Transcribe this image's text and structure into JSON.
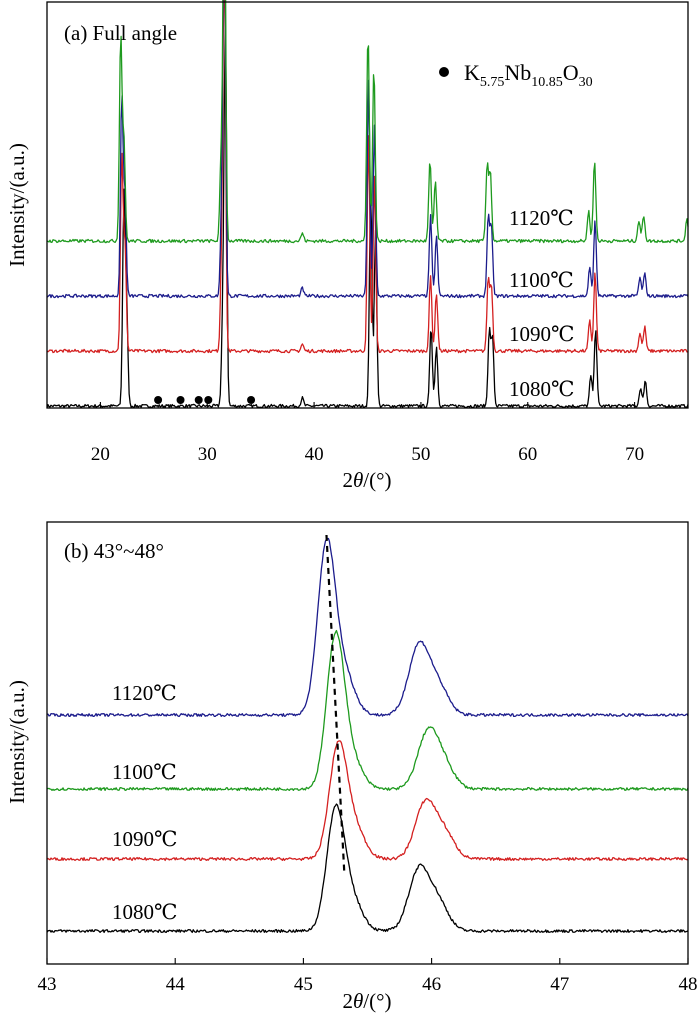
{
  "chart_data": [
    {
      "type": "line",
      "title": "(a) Full angle",
      "xlabel_prefix": "2",
      "xlabel_symbol": "θ",
      "xlabel_suffix": "/(°)",
      "ylabel": "Intensity/(a.u.)",
      "xlim": [
        15,
        75
      ],
      "xticks": [
        20,
        30,
        40,
        50,
        60,
        70
      ],
      "legend": {
        "marker": "filled-circle",
        "formula": [
          "K",
          "5.75",
          "Nb",
          "10.85",
          "O",
          "30"
        ],
        "placement": "top-right"
      },
      "impurity_markers_x": [
        25.4,
        27.5,
        29.2,
        30.1,
        34.1
      ],
      "series": [
        {
          "name": "1080℃",
          "color": "#000000",
          "offset": 0,
          "peaks": [
            [
              22.2,
              205
            ],
            [
              22.45,
              95
            ],
            [
              31.7,
              380
            ],
            [
              31.45,
              80
            ],
            [
              45.3,
              215
            ],
            [
              45.75,
              175
            ],
            [
              50.95,
              80
            ],
            [
              51.45,
              60
            ],
            [
              56.4,
              75
            ],
            [
              56.7,
              68
            ],
            [
              66.35,
              78
            ],
            [
              65.9,
              30
            ],
            [
              70.55,
              18
            ],
            [
              71.0,
              26
            ],
            [
              38.9,
              8
            ]
          ]
        },
        {
          "name": "1090℃",
          "color": "#d42020",
          "offset": 55,
          "peaks": [
            [
              22.0,
              195
            ],
            [
              22.3,
              105
            ],
            [
              31.6,
              395
            ],
            [
              31.35,
              85
            ],
            [
              45.1,
              215
            ],
            [
              45.65,
              175
            ],
            [
              50.9,
              75
            ],
            [
              51.45,
              58
            ],
            [
              56.3,
              72
            ],
            [
              56.6,
              65
            ],
            [
              66.3,
              78
            ],
            [
              65.8,
              30
            ],
            [
              70.5,
              18
            ],
            [
              70.95,
              24
            ],
            [
              38.9,
              7
            ]
          ]
        },
        {
          "name": "1100℃",
          "color": "#1c1c8c",
          "offset": 110,
          "peaks": [
            [
              22.0,
              200
            ],
            [
              22.3,
              100
            ],
            [
              31.6,
              385
            ],
            [
              31.35,
              80
            ],
            [
              45.1,
              215
            ],
            [
              45.65,
              170
            ],
            [
              50.9,
              80
            ],
            [
              51.45,
              60
            ],
            [
              56.3,
              78
            ],
            [
              56.6,
              70
            ],
            [
              66.3,
              75
            ],
            [
              65.8,
              28
            ],
            [
              70.5,
              18
            ],
            [
              70.95,
              22
            ],
            [
              38.9,
              8
            ]
          ]
        },
        {
          "name": "1120℃",
          "color": "#1e9a1e",
          "offset": 165,
          "peaks": [
            [
              21.9,
              205
            ],
            [
              22.2,
              100
            ],
            [
              31.6,
              398
            ],
            [
              31.3,
              82
            ],
            [
              45.05,
              210
            ],
            [
              45.6,
              175
            ],
            [
              50.85,
              80
            ],
            [
              51.35,
              60
            ],
            [
              56.2,
              75
            ],
            [
              56.5,
              68
            ],
            [
              66.25,
              80
            ],
            [
              65.7,
              30
            ],
            [
              70.4,
              20
            ],
            [
              70.85,
              26
            ],
            [
              38.9,
              8
            ],
            [
              74.9,
              22
            ]
          ]
        }
      ]
    },
    {
      "type": "line",
      "title": "(b) 43°~48°",
      "xlabel_prefix": "2",
      "xlabel_symbol": "θ",
      "xlabel_suffix": "/(°)",
      "ylabel": "Intensity/(a.u.)",
      "xlim": [
        43,
        48
      ],
      "xticks": [
        43,
        44,
        45,
        46,
        47,
        48
      ],
      "reference_line": {
        "x_top": 45.18,
        "x_bottom": 45.32,
        "style": "dashed"
      },
      "series": [
        {
          "name": "1080℃",
          "color": "#000000",
          "offset": 0,
          "peaks": [
            [
              45.25,
              118
            ],
            [
              45.38,
              30
            ],
            [
              45.9,
              60
            ],
            [
              46.05,
              28
            ]
          ]
        },
        {
          "name": "1090℃",
          "color": "#d42020",
          "offset": 72,
          "peaks": [
            [
              45.27,
              110
            ],
            [
              45.4,
              30
            ],
            [
              45.95,
              55
            ],
            [
              46.1,
              25
            ]
          ]
        },
        {
          "name": "1100℃",
          "color": "#1e9a1e",
          "offset": 142,
          "peaks": [
            [
              45.25,
              150
            ],
            [
              45.38,
              28
            ],
            [
              45.97,
              55
            ],
            [
              46.1,
              22
            ]
          ]
        },
        {
          "name": "1120℃",
          "color": "#1c1c8c",
          "offset": 216,
          "peaks": [
            [
              45.18,
              168
            ],
            [
              45.32,
              40
            ],
            [
              45.9,
              68
            ],
            [
              46.05,
              28
            ]
          ]
        }
      ]
    }
  ]
}
